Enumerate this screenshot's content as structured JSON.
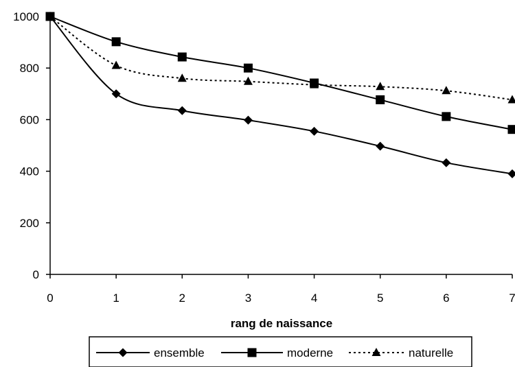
{
  "chart_data": {
    "type": "line",
    "title": "",
    "xlabel": "rang de naissance",
    "ylabel": "",
    "x": [
      0,
      1,
      2,
      3,
      4,
      5,
      6,
      7
    ],
    "xlim": [
      0,
      7
    ],
    "ylim": [
      0,
      1000
    ],
    "yticks": [
      0,
      200,
      400,
      600,
      800,
      1000
    ],
    "grid": false,
    "legend_position": "bottom",
    "series": [
      {
        "name": "ensemble",
        "marker": "diamond",
        "line_style": "solid",
        "color": "#000000",
        "values": [
          1000,
          700,
          635,
          598,
          555,
          497,
          433,
          390
        ]
      },
      {
        "name": "moderne",
        "marker": "square",
        "line_style": "solid",
        "color": "#000000",
        "values": [
          1000,
          902,
          843,
          800,
          742,
          677,
          612,
          562
        ]
      },
      {
        "name": "naturelle",
        "marker": "triangle",
        "line_style": "dotted",
        "color": "#000000",
        "values": [
          1000,
          810,
          760,
          748,
          735,
          728,
          712,
          677
        ]
      }
    ]
  }
}
